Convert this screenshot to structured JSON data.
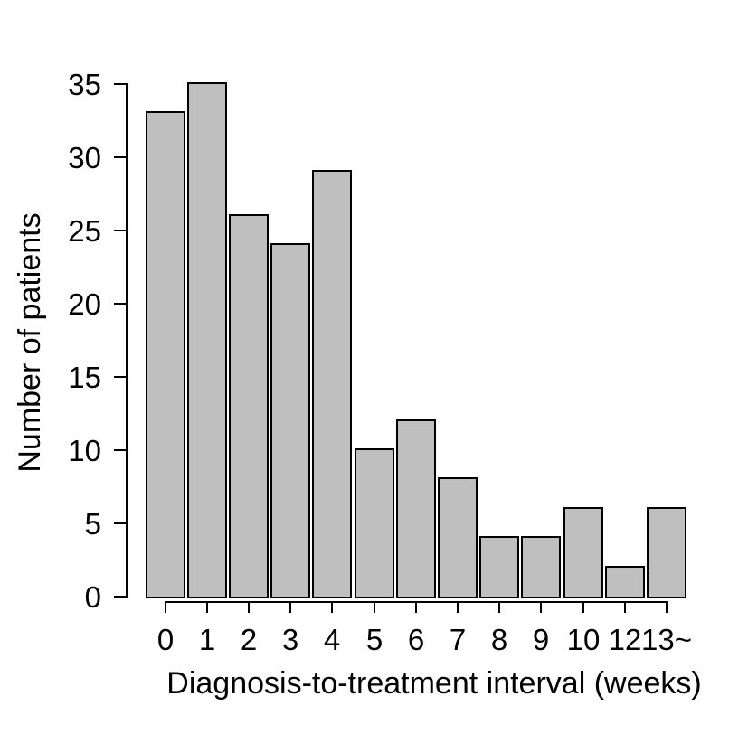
{
  "figure": {
    "background": "#ffffff"
  },
  "chart_data": {
    "type": "bar",
    "title": "",
    "categories": [
      "0",
      "1",
      "2",
      "3",
      "4",
      "5",
      "6",
      "7",
      "8",
      "9",
      "10",
      "12",
      "13~"
    ],
    "values": [
      33,
      35,
      26,
      24,
      29,
      10,
      12,
      8,
      4,
      4,
      6,
      2,
      6
    ],
    "xlabel": "Diagnosis-to-treatment interval (weeks)",
    "ylabel": "Number of patients",
    "ylim": [
      0,
      35
    ],
    "yticks": [
      0,
      5,
      10,
      15,
      20,
      25,
      30,
      35
    ],
    "grid": false,
    "legend": "none",
    "bar_fill_color": "#bfbfbf",
    "bar_border_color": "#000000",
    "axis_color": "#000000",
    "text_color": "#000000"
  }
}
